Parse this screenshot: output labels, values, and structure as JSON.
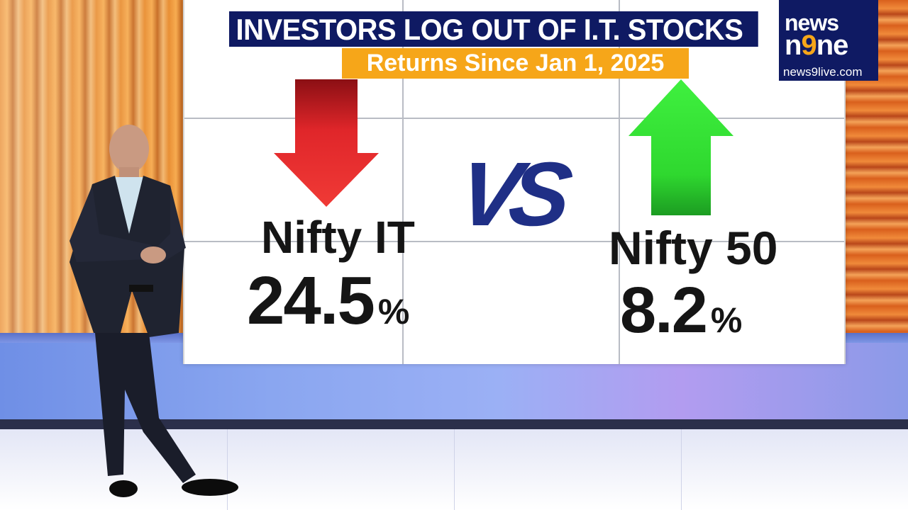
{
  "graphic": {
    "title": "INVESTORS LOG OUT OF I.T. STOCKS",
    "subtitle": "Returns Since Jan 1, 2025",
    "vs_label": "VS",
    "left": {
      "name": "Nifty IT",
      "value": "24.5",
      "unit": "%",
      "direction": "down",
      "arrow_color": "#e0262a"
    },
    "right": {
      "name": "Nifty 50",
      "value": "8.2",
      "unit": "%",
      "direction": "up",
      "arrow_color": "#2fd82f"
    }
  },
  "logo": {
    "line1": "news",
    "line2_a": "n",
    "line2_accent": "9",
    "line2_b": "ne",
    "url": "news9live.com"
  },
  "colors": {
    "title_bg": "#0f1a63",
    "subtitle_bg": "#f6a619",
    "vs_color": "#1f2f86"
  }
}
